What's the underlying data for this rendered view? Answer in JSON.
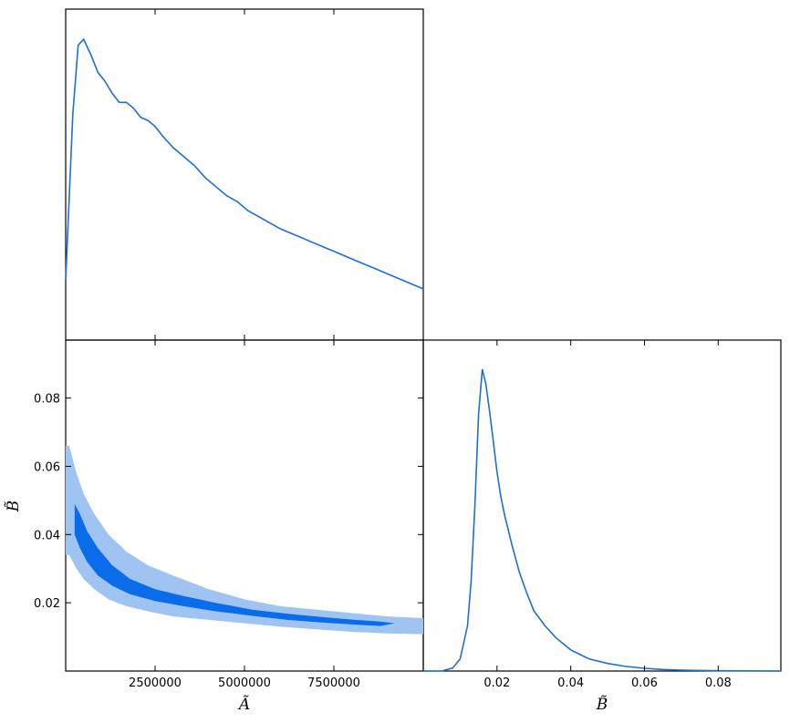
{
  "chart_data": [
    {
      "panel": "marginal A",
      "type": "line",
      "xlim": [
        0,
        10000000
      ],
      "x": [
        0,
        200000,
        350000,
        500000,
        700000,
        900000,
        1100000,
        1300000,
        1500000,
        1700000,
        1900000,
        2100000,
        2300000,
        2500000,
        2700000,
        3000000,
        3300000,
        3600000,
        3900000,
        4200000,
        4500000,
        4800000,
        5100000,
        5400000,
        5700000,
        6000000,
        6300000,
        6600000,
        6900000,
        7200000,
        7500000,
        7800000,
        8100000,
        8400000,
        8700000,
        9000000,
        9300000,
        9600000,
        10000000
      ],
      "y": [
        0.2,
        0.75,
        0.98,
        1.0,
        0.95,
        0.89,
        0.86,
        0.82,
        0.79,
        0.79,
        0.77,
        0.74,
        0.73,
        0.71,
        0.68,
        0.64,
        0.61,
        0.58,
        0.54,
        0.51,
        0.48,
        0.46,
        0.43,
        0.41,
        0.39,
        0.37,
        0.355,
        0.34,
        0.325,
        0.31,
        0.295,
        0.28,
        0.265,
        0.25,
        0.235,
        0.22,
        0.205,
        0.19,
        0.17
      ],
      "color": "#1c6fd8"
    },
    {
      "panel": "joint A-B",
      "type": "area",
      "xlim": [
        0,
        10000000
      ],
      "ylim": [
        0.0,
        0.097
      ],
      "xticks": [
        2500000,
        5000000,
        7500000
      ],
      "xtick_labels": [
        "2500000",
        "5000000",
        "7500000"
      ],
      "yticks": [
        0.02,
        0.04,
        0.06,
        0.08
      ],
      "ytick_labels": [
        "0.02",
        "0.04",
        "0.06",
        "0.08"
      ],
      "xlabel": "Ã",
      "ylabel": "B̃",
      "contours": [
        {
          "level": "outer",
          "color": "#9fc4f2",
          "x": [
            0,
            100000,
            300000,
            500000,
            800000,
            1200000,
            1700000,
            2300000,
            3000000,
            4000000,
            5000000,
            6000000,
            7000000,
            8000000,
            9000000,
            10000000
          ],
          "upper": [
            0.066,
            0.066,
            0.058,
            0.052,
            0.046,
            0.04,
            0.035,
            0.031,
            0.028,
            0.024,
            0.021,
            0.019,
            0.018,
            0.017,
            0.016,
            0.0155
          ],
          "lower": [
            0.034,
            0.034,
            0.03,
            0.027,
            0.024,
            0.021,
            0.019,
            0.0175,
            0.016,
            0.015,
            0.014,
            0.013,
            0.0122,
            0.0115,
            0.011,
            0.0108
          ]
        },
        {
          "level": "inner",
          "color": "#0a6ce8",
          "x": [
            250000,
            400000,
            600000,
            900000,
            1300000,
            1800000,
            2500000,
            3300000,
            4200000,
            5200000,
            6200000,
            7200000,
            8100000,
            8800000,
            9200000
          ],
          "upper": [
            0.049,
            0.046,
            0.041,
            0.036,
            0.031,
            0.027,
            0.024,
            0.022,
            0.02,
            0.018,
            0.0168,
            0.0158,
            0.015,
            0.0145,
            0.014
          ],
          "lower": [
            0.04,
            0.036,
            0.032,
            0.028,
            0.025,
            0.0225,
            0.0205,
            0.019,
            0.0175,
            0.0162,
            0.015,
            0.0142,
            0.0136,
            0.0132,
            0.014
          ]
        }
      ]
    },
    {
      "panel": "marginal B",
      "type": "line",
      "xlim": [
        0.0,
        0.097
      ],
      "xticks": [
        0.02,
        0.04,
        0.06,
        0.08
      ],
      "xtick_labels": [
        "0.02",
        "0.04",
        "0.06",
        "0.08"
      ],
      "xlabel": "B̃",
      "x": [
        0.0,
        0.005,
        0.008,
        0.01,
        0.012,
        0.013,
        0.014,
        0.015,
        0.016,
        0.017,
        0.018,
        0.019,
        0.02,
        0.021,
        0.022,
        0.024,
        0.026,
        0.028,
        0.03,
        0.033,
        0.036,
        0.04,
        0.045,
        0.05,
        0.055,
        0.06,
        0.065,
        0.07,
        0.08,
        0.097
      ],
      "y": [
        0.0,
        0.0,
        0.01,
        0.04,
        0.15,
        0.3,
        0.55,
        0.85,
        1.0,
        0.95,
        0.86,
        0.76,
        0.66,
        0.58,
        0.52,
        0.42,
        0.33,
        0.26,
        0.2,
        0.15,
        0.11,
        0.07,
        0.04,
        0.025,
        0.015,
        0.009,
        0.005,
        0.003,
        0.001,
        0.0
      ],
      "color": "#1c6fd8"
    }
  ]
}
